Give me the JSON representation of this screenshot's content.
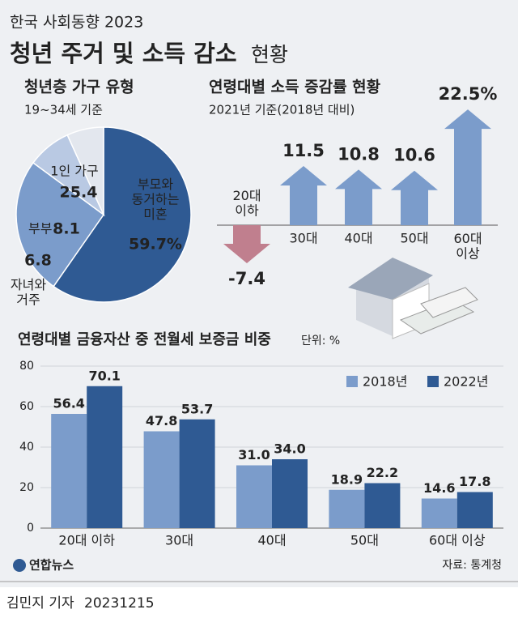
{
  "header": {
    "subtitle": "한국 사회동향 2023",
    "title": "청년 주거 및 소득 감소",
    "title_suffix": "현황"
  },
  "chart_data": [
    {
      "type": "pie",
      "title": "청년층 가구 유형",
      "subtitle": "19~34세 기준",
      "categories": [
        "부모와\n동거하는\n미혼",
        "1인 가구",
        "부부",
        "자녀와\n거주"
      ],
      "values": [
        59.7,
        25.4,
        8.1,
        6.8
      ],
      "value_labels": [
        "59.7%",
        "25.4",
        "8.1",
        "6.8"
      ],
      "colors": [
        "#2f5a93",
        "#7b9ccb",
        "#b9c9e3",
        "#e3e7ee"
      ]
    },
    {
      "type": "arrow",
      "title": "연령대별 소득 증감률 현황",
      "subtitle": "2021년 기준(2018년 대비)",
      "categories": [
        "20대\n이하",
        "30대",
        "40대",
        "50대",
        "60대\n이상"
      ],
      "values": [
        -7.4,
        11.5,
        10.8,
        10.6,
        22.5
      ],
      "value_labels": [
        "-7.4",
        "11.5",
        "10.8",
        "10.6",
        "22.5%"
      ],
      "color": "#7b9ccb",
      "negative_color": "#c07f8e"
    },
    {
      "type": "bar",
      "title": "연령대별 금융자산 중 전월세 보증금 비중",
      "unit": "단위: %",
      "categories": [
        "20대 이하",
        "30대",
        "40대",
        "50대",
        "60대 이상"
      ],
      "series": [
        {
          "name": "2018년",
          "color": "#7b9ccb",
          "values": [
            56.4,
            47.8,
            31.0,
            18.9,
            14.6
          ],
          "value_labels": [
            "56.4",
            "47.8",
            "31.0",
            "18.9",
            "14.6"
          ]
        },
        {
          "name": "2022년",
          "color": "#2f5a93",
          "values": [
            70.1,
            53.7,
            34.0,
            22.2,
            17.8
          ],
          "value_labels": [
            "70.1",
            "53.7",
            "34.0",
            "22.2",
            "17.8"
          ]
        }
      ],
      "ylim": [
        0,
        80
      ],
      "yticks": [
        0,
        20,
        40,
        60,
        80
      ],
      "grid": true,
      "legend": "upper right"
    }
  ],
  "footer": {
    "logo": "연합뉴스",
    "source": "자료: 통계청",
    "byline": "김민지 기자",
    "date": "20231215"
  }
}
